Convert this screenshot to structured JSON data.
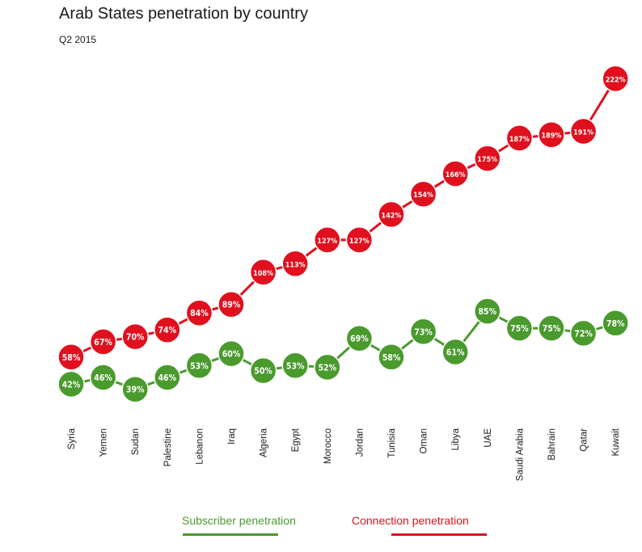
{
  "chart_data": {
    "type": "line",
    "title": "Arab States penetration by country",
    "subtitle": "Q2 2015",
    "categories": [
      "Syria",
      "Yemen",
      "Sudan",
      "Palestine",
      "Lebanon",
      "Iraq",
      "Algeria",
      "Egypt",
      "Morocco",
      "Jordan",
      "Tunisia",
      "Oman",
      "Libya",
      "UAE",
      "Saudi Arabia",
      "Bahrain",
      "Qatar",
      "Kuwait"
    ],
    "series": [
      {
        "name": "Subscriber penetration",
        "color": "#4a9a2e",
        "values": [
          42,
          46,
          39,
          46,
          53,
          60,
          50,
          53,
          52,
          69,
          58,
          73,
          61,
          85,
          75,
          75,
          72,
          78
        ],
        "labels": [
          "42%",
          "46%",
          "39%",
          "46%",
          "53%",
          "60%",
          "50%",
          "53%",
          "52%",
          "69%",
          "58%",
          "73%",
          "61%",
          "85%",
          "75%",
          "75%",
          "72%",
          "78%"
        ]
      },
      {
        "name": "Connection penetration",
        "color": "#e0101e",
        "values": [
          58,
          67,
          70,
          74,
          84,
          89,
          108,
          113,
          127,
          127,
          142,
          154,
          166,
          175,
          187,
          189,
          191,
          222
        ],
        "labels": [
          "58%",
          "67%",
          "70%",
          "74%",
          "84%",
          "89%",
          "108%",
          "113%",
          "127%",
          "127%",
          "142%",
          "154%",
          "166%",
          "175%",
          "187%",
          "189%",
          "191%",
          "222%"
        ]
      }
    ],
    "legend_placement": "bottom",
    "grid": false
  }
}
